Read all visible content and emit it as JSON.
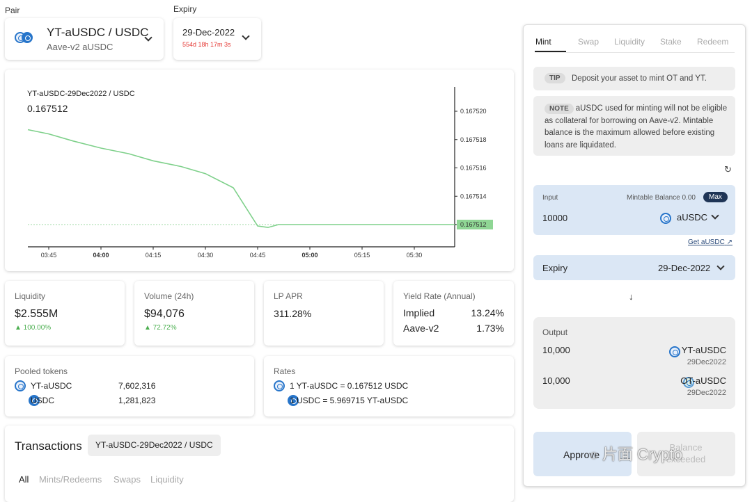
{
  "pair_label": "Pair",
  "expiry_label": "Expiry",
  "pair": {
    "title": "YT-aUSDC / USDC",
    "subtitle": "Aave-v2 aUSDC"
  },
  "expiry": {
    "date": "29-Dec-2022",
    "countdown": "554d 18h 17m 3s"
  },
  "chart_data": {
    "type": "line",
    "title": "YT-aUSDC-29Dec2022 / USDC",
    "current_value": "0.167512",
    "x_ticks": [
      "03:45",
      "04:00",
      "04:15",
      "04:30",
      "04:45",
      "05:00",
      "05:15",
      "05:30"
    ],
    "y_ticks": [
      "0.167520",
      "0.167518",
      "0.167516",
      "0.167514",
      "0.167512"
    ],
    "x": [
      "03:39",
      "03:45",
      "03:52",
      "04:00",
      "04:08",
      "04:15",
      "04:23",
      "04:30",
      "04:38",
      "04:45",
      "04:48",
      "04:51",
      "05:00",
      "05:15",
      "05:30",
      "05:42"
    ],
    "values": [
      0.1675187,
      0.1675184,
      0.1675179,
      0.1675174,
      0.167517,
      0.1675165,
      0.1675161,
      0.1675156,
      0.1675146,
      0.1675119,
      0.1675118,
      0.167512,
      0.167512,
      0.167512,
      0.167512,
      0.167512
    ],
    "price_tag": "0.167512",
    "line_color": "#7ed08a",
    "tag_color": "#8fd694"
  },
  "stats": {
    "liquidity": {
      "label": "Liquidity",
      "value": "$2.555M",
      "change": "▲ 100.00%"
    },
    "volume": {
      "label": "Volume (24h)",
      "value": "$94,076",
      "change": "▲ 72.72%"
    },
    "lp_apr": {
      "label": "LP APR",
      "value": "311.28%"
    },
    "yield": {
      "label": "Yield Rate (Annual)",
      "implied_label": "Implied",
      "implied": "13.24%",
      "aave_label": "Aave-v2",
      "aave": "1.73%"
    }
  },
  "pooled": {
    "label": "Pooled tokens",
    "rows": [
      {
        "name": "YT-aUSDC",
        "amount": "7,602,316"
      },
      {
        "name": "USDC",
        "amount": "1,281,823"
      }
    ]
  },
  "rates": {
    "label": "Rates",
    "rows": [
      "1 YT-aUSDC = 0.167512 USDC",
      "1 USDC = 5.969715 YT-aUSDC"
    ]
  },
  "transactions": {
    "title": "Transactions",
    "pair_chip": "YT-aUSDC-29Dec2022 / USDC",
    "tabs": [
      "All",
      "Mints/Redeems",
      "Swaps",
      "Liquidity"
    ]
  },
  "panel": {
    "tabs": [
      "Mint",
      "Swap",
      "Liquidity",
      "Stake",
      "Redeem"
    ],
    "tip_badge": "TIP",
    "tip_text": "Deposit your asset to mint OT and YT.",
    "note_badge": "NOTE",
    "note_text": "aUSDC used for minting will not be eligible as collateral for borrowing on Aave-v2. Mintable balance is the maximum allowed before existing loans are liquidated.",
    "input_label": "Input",
    "balance_text": "Mintable Balance 0.00",
    "max_label": "Max",
    "input_value": "10000",
    "input_token": "aUSDC",
    "get_link": "Get aUSDC",
    "expiry_label": "Expiry",
    "expiry_value": "29-Dec-2022",
    "arrow": "↓",
    "output_label": "Output",
    "outputs": [
      {
        "amount": "10,000",
        "token": "YT-aUSDC",
        "sub": "29Dec2022"
      },
      {
        "amount": "10,000",
        "token": "OT-aUSDC",
        "sub": "29Dec2022"
      }
    ],
    "approve_label": "Approve",
    "balance_button_label": "Balance exceeded",
    "watermark": "片面 Crypto"
  }
}
